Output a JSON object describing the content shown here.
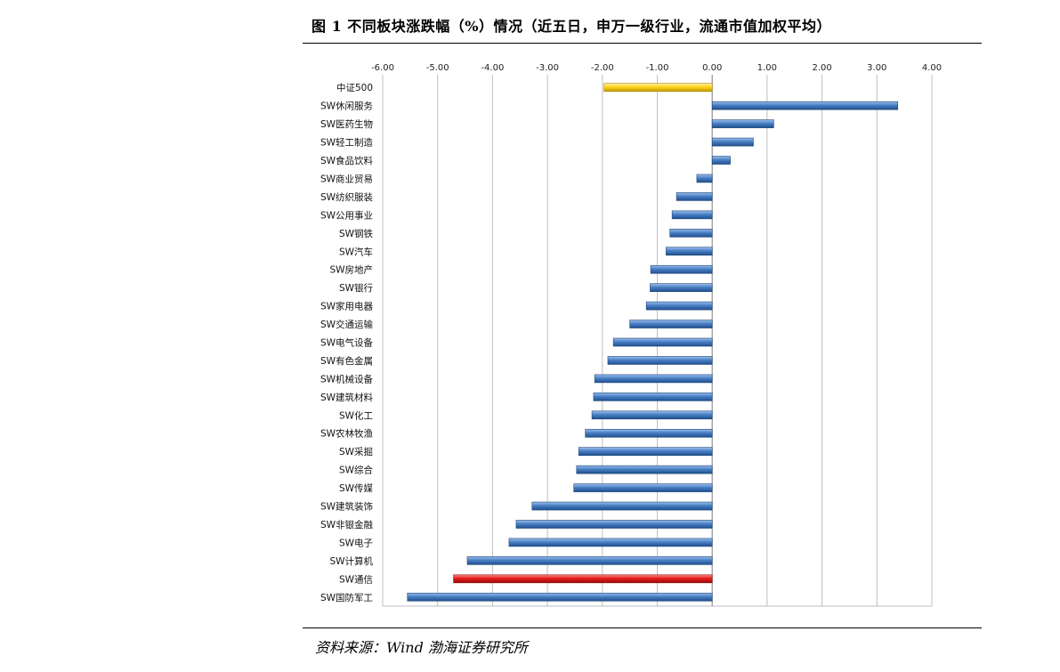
{
  "figure": {
    "title": "图 1 不同板块涨跌幅（%）情况（近五日，申万一级行业，流通市值加权平均）",
    "source": "资料来源：Wind 渤海证券研究所"
  },
  "chart_data": {
    "type": "bar",
    "orientation": "horizontal",
    "title": "",
    "xlabel": "",
    "ylabel": "",
    "xlim": [
      -6,
      4
    ],
    "x_ticks": [
      "-6.00",
      "-5.00",
      "-4.00",
      "-3.00",
      "-2.00",
      "-1.00",
      "0.00",
      "1.00",
      "2.00",
      "3.00",
      "4.00"
    ],
    "x_axis_position": "top",
    "grid": true,
    "categories": [
      "中证500",
      "SW休闲服务",
      "SW医药生物",
      "SW轻工制造",
      "SW食品饮料",
      "SW商业贸易",
      "SW纺织服装",
      "SW公用事业",
      "SW钢铁",
      "SW汽车",
      "SW房地产",
      "SW银行",
      "SW家用电器",
      "SW交通运输",
      "SW电气设备",
      "SW有色金属",
      "SW机械设备",
      "SW建筑材料",
      "SW化工",
      "SW农林牧渔",
      "SW采掘",
      "SW综合",
      "SW传媒",
      "SW建筑装饰",
      "SW非银金融",
      "SW电子",
      "SW计算机",
      "SW通信",
      "SW国防军工"
    ],
    "values": [
      -1.97,
      3.38,
      1.12,
      0.75,
      0.33,
      -0.28,
      -0.65,
      -0.73,
      -0.77,
      -0.84,
      -1.12,
      -1.13,
      -1.2,
      -1.5,
      -1.8,
      -1.9,
      -2.14,
      -2.16,
      -2.19,
      -2.31,
      -2.43,
      -2.47,
      -2.52,
      -3.28,
      -3.57,
      -3.7,
      -4.46,
      -4.71,
      -5.55
    ],
    "colors": {
      "default": "#4a7fc4",
      "highlight_index_0": "#ffd21a",
      "highlight_index_27": "#e31b1b"
    },
    "highlight": {
      "中证500": "#ffd21a",
      "SW通信": "#e31b1b"
    }
  }
}
